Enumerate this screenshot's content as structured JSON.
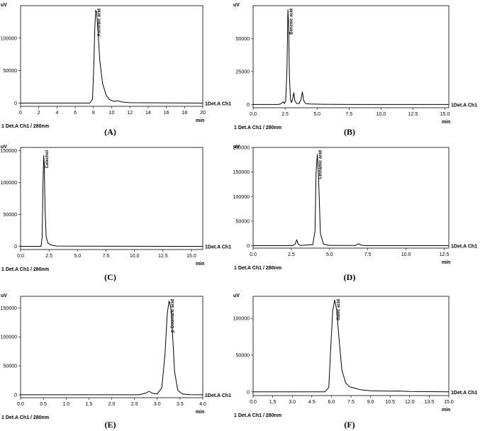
{
  "chart_data": [
    {
      "type": "line",
      "panel_label": "(A)",
      "yunit": "uV",
      "xunit": "min",
      "channel_label": "1Det.A Ch1",
      "footer": "1  Det.A Ch1 / 280nm",
      "peak_label": "Ascorbic acid",
      "peak_x": 8.3,
      "xlim": [
        0,
        20
      ],
      "ylim": [
        -5000,
        150000
      ],
      "xticks": [
        0,
        2,
        4,
        6,
        8,
        10,
        12,
        14,
        16,
        18,
        20
      ],
      "xtick_labels": [
        "0",
        "2",
        "4",
        "6",
        "8",
        "10",
        "12",
        "14",
        "16",
        "18",
        "20"
      ],
      "yticks": [
        0,
        50000,
        100000
      ],
      "ytick_labels": [
        "0",
        "50000",
        "100000"
      ],
      "series": [
        {
          "x": [
            0,
            7.6,
            7.9,
            8.05,
            8.15,
            8.25,
            8.35,
            8.5,
            8.7,
            9.0,
            9.4,
            9.8,
            10.3,
            10.7,
            11.2,
            12,
            20
          ],
          "y": [
            0,
            0,
            6000,
            60000,
            115000,
            143000,
            140000,
            110000,
            65000,
            30000,
            12000,
            5000,
            2500,
            3500,
            1500,
            600,
            0
          ]
        }
      ]
    },
    {
      "type": "line",
      "panel_label": "(B)",
      "yunit": "uV",
      "xunit": "min",
      "channel_label": "1Det.A Ch1",
      "footer": "1  Det.A Ch1 / 280nm",
      "peak_label": "Benzoic acid",
      "peak_x": 2.75,
      "xlim": [
        0,
        15.3
      ],
      "ylim": [
        -2500,
        75000
      ],
      "xticks": [
        0,
        2.5,
        5,
        7.5,
        10,
        12.5,
        15
      ],
      "xtick_labels": [
        "0.0",
        "2.5",
        "5.0",
        "7.5",
        "10.0",
        "12.5",
        "15.0"
      ],
      "yticks": [
        0,
        25000,
        50000
      ],
      "ytick_labels": [
        "0",
        "25000",
        "50000"
      ],
      "series": [
        {
          "x": [
            0,
            2.0,
            2.2,
            2.35,
            2.45,
            2.55,
            2.65,
            2.72,
            2.78,
            2.84,
            2.92,
            3.0,
            3.1,
            3.18,
            3.26,
            3.4,
            3.6,
            3.75,
            3.85,
            3.95,
            4.1,
            4.5,
            5.5,
            8.0,
            12.0,
            15.3
          ],
          "y": [
            0,
            0,
            600,
            2200,
            700,
            3000,
            28000,
            72000,
            60000,
            22000,
            4000,
            1500,
            4500,
            9000,
            3000,
            800,
            700,
            4000,
            9500,
            3000,
            700,
            300,
            150,
            0,
            0,
            0
          ]
        }
      ]
    },
    {
      "type": "line",
      "panel_label": "(C)",
      "yunit": "uV",
      "xunit": "min",
      "channel_label": "1Det.A Ch1",
      "footer": "1  Det.A Ch1 / 280nm",
      "peak_label": "Catechol",
      "peak_x": 2.05,
      "xlim": [
        0,
        16
      ],
      "ylim": [
        -5000,
        155000
      ],
      "xticks": [
        0,
        2.5,
        5,
        7.5,
        10,
        12.5,
        15
      ],
      "xtick_labels": [
        "0.0",
        "2.5",
        "5.0",
        "7.5",
        "10.0",
        "12.5",
        "15.0"
      ],
      "yticks": [
        0,
        50000,
        100000,
        150000
      ],
      "ytick_labels": [
        "0",
        "50000",
        "100000",
        "150000"
      ],
      "series": [
        {
          "x": [
            0,
            1.8,
            1.9,
            1.97,
            2.03,
            2.08,
            2.15,
            2.25,
            2.4,
            2.7,
            3.2,
            16
          ],
          "y": [
            0,
            0,
            15000,
            95000,
            142000,
            130000,
            60000,
            15000,
            5000,
            2000,
            500,
            0
          ]
        }
      ]
    },
    {
      "type": "line",
      "panel_label": "(D)",
      "yunit": "uV",
      "xunit": "min",
      "channel_label": "1Det.A Ch1",
      "footer": "1  Det.A Ch1 / 280nm",
      "peak_label": "Cinnamic acid",
      "peak_x": 4.2,
      "xlim": [
        0,
        12.8
      ],
      "ylim": [
        -5000,
        200000
      ],
      "xticks": [
        0,
        2.5,
        5,
        7.5,
        10,
        12.5
      ],
      "xtick_labels": [
        "0.0",
        "2.5",
        "5.0",
        "7.5",
        "10.0",
        "12.5"
      ],
      "yticks": [
        0,
        50000,
        100000,
        150000,
        200000
      ],
      "ytick_labels": [
        "0",
        "50000",
        "100000",
        "150000",
        "200000"
      ],
      "series": [
        {
          "x": [
            0,
            2.6,
            2.75,
            2.85,
            2.95,
            3.1,
            3.6,
            3.9,
            4.05,
            4.12,
            4.2,
            4.28,
            4.4,
            4.6,
            5.0,
            6.7,
            6.85,
            6.95,
            7.1,
            7.4,
            12.8
          ],
          "y": [
            0,
            0,
            3000,
            12000,
            3000,
            500,
            1500,
            2000,
            30000,
            150000,
            186000,
            140000,
            25000,
            3000,
            500,
            500,
            3500,
            3000,
            800,
            0,
            0
          ]
        }
      ]
    },
    {
      "type": "line",
      "panel_label": "(E)",
      "yunit": "uV",
      "xunit": "min",
      "channel_label": "1Det.A Ch1",
      "footer": "1  Det.A Ch1 / 280nm",
      "peak_label": "p-Coumaric acid",
      "peak_x": 3.27,
      "xlim": [
        0,
        4.0
      ],
      "ylim": [
        -5000,
        170000
      ],
      "xticks": [
        0,
        0.5,
        1,
        1.5,
        2,
        2.5,
        3,
        3.5,
        4
      ],
      "xtick_labels": [
        "0.0",
        "0.5",
        "1.0",
        "1.5",
        "2.0",
        "2.5",
        "3.0",
        "3.5",
        "4.0"
      ],
      "yticks": [
        0,
        50000,
        100000,
        150000
      ],
      "ytick_labels": [
        "0",
        "50000",
        "100000",
        "150000"
      ],
      "series": [
        {
          "x": [
            0,
            2.6,
            2.75,
            2.82,
            2.9,
            3.0,
            3.1,
            3.17,
            3.22,
            3.26,
            3.3,
            3.34,
            3.38,
            3.45,
            3.55,
            3.7,
            4.0
          ],
          "y": [
            0,
            0,
            3000,
            6000,
            2500,
            1500,
            12000,
            70000,
            140000,
            162000,
            150000,
            100000,
            40000,
            8000,
            1500,
            300,
            0
          ]
        }
      ]
    },
    {
      "type": "line",
      "panel_label": "(F)",
      "yunit": "uV",
      "xunit": "min",
      "channel_label": "1Det.A Ch1",
      "footer": "1  Det.A Ch1 / 280nm",
      "peak_label": "Gallic acid",
      "peak_x": 6.3,
      "xlim": [
        0,
        15
      ],
      "ylim": [
        -5000,
        130000
      ],
      "xticks": [
        0,
        1.5,
        3,
        4.5,
        6,
        7.5,
        9,
        10.5,
        12,
        13.5,
        15
      ],
      "xtick_labels": [
        "0.0",
        "1.5",
        "3.0",
        "4.5",
        "6.0",
        "7.5",
        "9.0",
        "10.5",
        "12.0",
        "13.5",
        "15.0"
      ],
      "yticks": [
        0,
        50000,
        100000
      ],
      "ytick_labels": [
        "0",
        "50000",
        "100000"
      ],
      "series": [
        {
          "x": [
            0,
            5.5,
            5.8,
            5.95,
            6.1,
            6.25,
            6.4,
            6.6,
            6.8,
            7.1,
            7.4,
            7.8,
            8.2,
            9.0,
            10.5,
            11.2,
            12,
            15
          ],
          "y": [
            0,
            0,
            6000,
            60000,
            110000,
            125000,
            112000,
            70000,
            30000,
            12000,
            7000,
            5000,
            3000,
            1500,
            1000,
            1200,
            500,
            0
          ]
        }
      ]
    }
  ]
}
